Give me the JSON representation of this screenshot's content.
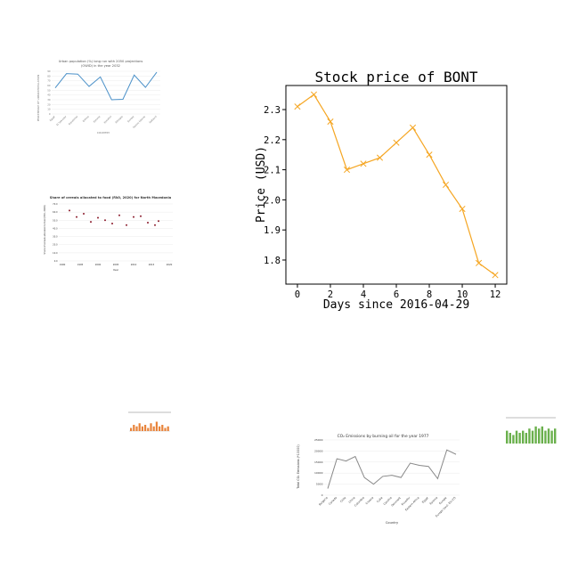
{
  "main_chart": {
    "title": "Stock price of BONT",
    "ylabel": "Price (USD)",
    "xlabel": "Days since 2016-04-29",
    "color": "#f5a623"
  },
  "thumbnails": {
    "urban": {
      "title_line1": "Urban population (%) long run with 2050 projections",
      "title_line2": "(OWID) in the year 2032",
      "ylabel": "PERCENTAGE OF URBAN POPULATION",
      "xlabel": "COUNTRY",
      "color": "#4a90c8"
    },
    "cereals": {
      "title": "Share of cereals allocated to food (FAO, 2020) for North Macedonia",
      "ylabel": "Share of cereals allocated to food (FAO, 2020)",
      "xlabel": "Year",
      "color": "#8b1a2b"
    },
    "co2": {
      "title": "CO₂ Emissions by burning oil for the year 1977",
      "ylabel": "Total CO₂ Emissions (*10000)",
      "xlabel": "Country",
      "color": "#888888"
    },
    "small_bar": {
      "color": "#e8833a"
    },
    "small_green": {
      "color": "#6ab04c"
    }
  },
  "chart_data": [
    {
      "type": "line",
      "title": "Stock price of BONT",
      "xlabel": "Days since 2016-04-29",
      "ylabel": "Price (USD)",
      "x": [
        0,
        1,
        2,
        3,
        4,
        5,
        6,
        7,
        8,
        9,
        10,
        11,
        12
      ],
      "y": [
        2.31,
        2.35,
        2.26,
        2.1,
        2.12,
        2.14,
        2.19,
        2.24,
        2.15,
        2.05,
        1.97,
        1.79,
        1.75
      ],
      "xticks": [
        "0",
        "2",
        "4",
        "6",
        "8",
        "10",
        "12"
      ],
      "yticks": [
        "1.8",
        "1.9",
        "2.0",
        "2.1",
        "2.2",
        "2.3"
      ],
      "xlim": [
        -0.7,
        12.7
      ],
      "ylim": [
        1.72,
        2.38
      ],
      "marker": "x",
      "grid": false
    },
    {
      "type": "line",
      "title": "Urban population (%) long run with 2050 projections (OWID) in the year 2032",
      "xlabel": "COUNTRY",
      "ylabel": "PERCENTAGE OF URBAN POPULATION",
      "categories": [
        "Egypt",
        "El Salvador",
        "Equatorial",
        "Eritrea",
        "Estonia",
        "Eswatini",
        "Ethiopia",
        "Europe",
        "Faeroe Islands",
        "Falkland"
      ],
      "values": [
        55,
        85,
        84,
        58,
        78,
        30,
        31,
        82,
        56,
        88
      ],
      "yticks": [
        "0",
        "10",
        "20",
        "30",
        "40",
        "50",
        "60",
        "70",
        "80",
        "90"
      ],
      "ylim": [
        0,
        90
      ]
    },
    {
      "type": "scatter",
      "title": "Share of cereals allocated to food (FAO, 2020) for North Macedonia",
      "xlabel": "Year",
      "ylabel": "Share of cereals allocated to food (FAO, 2020)",
      "x": [
        1992,
        1994,
        1996,
        1998,
        2000,
        2002,
        2004,
        2006,
        2008,
        2010,
        2012,
        2014,
        2016,
        2017
      ],
      "y": [
        62,
        54,
        58,
        48,
        53,
        50,
        46,
        56,
        44,
        54,
        55,
        47,
        44,
        49
      ],
      "xticks": [
        "1990",
        "1995",
        "2000",
        "2005",
        "2010",
        "2015",
        "2020"
      ],
      "yticks": [
        "0.0",
        "10.0",
        "20.0",
        "30.0",
        "40.0",
        "50.0",
        "60.0",
        "70.0"
      ],
      "xlim": [
        1989,
        2021
      ],
      "ylim": [
        0,
        70
      ]
    },
    {
      "type": "line",
      "title": "CO₂ Emissions by burning oil for the year 1977",
      "xlabel": "Country",
      "ylabel": "Total CO₂ Emissions (*10000)",
      "categories": [
        "Bulgaria",
        "Canada",
        "Chile",
        "China",
        "Colombia",
        "Croatia",
        "Cuba",
        "Czechia",
        "Denmark",
        "Ecuador",
        "Eastern Africa",
        "Egypt",
        "Estonia",
        "Europe",
        "Europe (excl. EU-27)"
      ],
      "values": [
        3000,
        16500,
        15500,
        17500,
        8000,
        5000,
        8500,
        9000,
        8000,
        14500,
        13500,
        13000,
        7500,
        20500,
        18500
      ],
      "yticks": [
        "0",
        "5000",
        "10000",
        "15000",
        "20000",
        "25000"
      ],
      "ylim": [
        0,
        25000
      ]
    },
    {
      "type": "bar",
      "values": [
        2,
        4,
        3,
        5,
        3,
        4,
        2,
        5,
        3,
        6,
        3,
        4,
        2,
        3
      ],
      "ylim": [
        0,
        8
      ]
    },
    {
      "type": "bar",
      "values": [
        6,
        5,
        4,
        6,
        5,
        6,
        5,
        7,
        6,
        8,
        7,
        8,
        6,
        7,
        6,
        7
      ],
      "ylim": [
        0,
        10
      ]
    }
  ]
}
